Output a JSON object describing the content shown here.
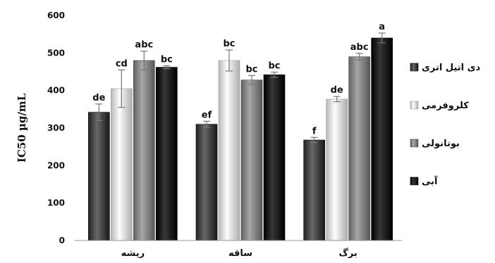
{
  "chart_data": {
    "type": "bar",
    "ylabel": "IC50 µg/mL",
    "ylim": [
      0,
      600
    ],
    "yticks": [
      "0",
      "100",
      "200",
      "300",
      "400",
      "500",
      "600"
    ],
    "categories": [
      "ریشه",
      "ساقه",
      "برگ"
    ],
    "legend_position": "right",
    "grid": false,
    "series": [
      {
        "name": "دی اتیل اتری",
        "color": "#3a3a3a",
        "values": [
          342,
          310,
          268
        ],
        "errors": [
          22,
          8,
          7
        ],
        "labels": [
          "de",
          "ef",
          "f"
        ]
      },
      {
        "name": "کلروفرمی",
        "color": "#d0d0d0",
        "values": [
          405,
          480,
          377
        ],
        "errors": [
          50,
          28,
          7
        ],
        "labels": [
          "cd",
          "bc",
          "de"
        ]
      },
      {
        "name": "بوتانولی",
        "color": "#7a7a7a",
        "values": [
          480,
          428,
          490
        ],
        "errors": [
          25,
          12,
          9
        ],
        "labels": [
          "abc",
          "bc",
          "abc"
        ]
      },
      {
        "name": "آبی",
        "color": "#0a0a0a",
        "values": [
          462,
          442,
          540
        ],
        "errors": [
          4,
          7,
          13
        ],
        "labels": [
          "bc",
          "bc",
          "a"
        ]
      }
    ]
  }
}
